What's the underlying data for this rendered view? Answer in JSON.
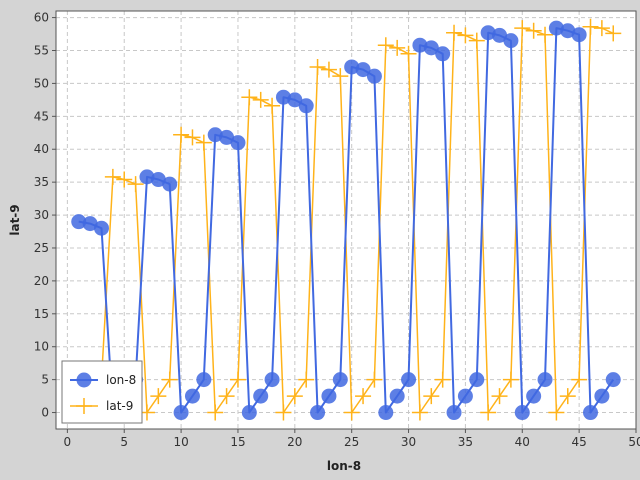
{
  "chart_data": {
    "type": "line",
    "title": "",
    "xlabel": "lon-8",
    "ylabel": "lat-9",
    "xlim": [
      -1,
      50
    ],
    "ylim": [
      -2.5,
      61
    ],
    "xticks": [
      0,
      5,
      10,
      15,
      20,
      25,
      30,
      35,
      40,
      45,
      50
    ],
    "yticks": [
      0,
      5,
      10,
      15,
      20,
      25,
      30,
      35,
      40,
      45,
      50,
      55,
      60
    ],
    "grid": true,
    "legend_position": "bottom-left",
    "series": [
      {
        "name": "lon-8",
        "color": "#4169e1",
        "marker": "circle",
        "x": [
          1,
          2,
          3,
          4,
          5,
          6,
          7,
          8,
          9,
          10,
          11,
          12,
          13,
          14,
          15,
          16,
          17,
          18,
          19,
          20,
          21,
          22,
          23,
          24,
          25,
          26,
          27,
          28,
          29,
          30,
          31,
          32,
          33,
          34,
          35,
          36,
          37,
          38,
          39,
          40,
          41,
          42,
          43,
          44,
          45,
          46,
          47,
          48
        ],
        "y": [
          29,
          28.7,
          28,
          0,
          2.5,
          5,
          35.8,
          35.4,
          34.7,
          0,
          2.5,
          5,
          42.2,
          41.8,
          41,
          0,
          2.5,
          5,
          47.9,
          47.5,
          46.6,
          0,
          2.5,
          5,
          52.5,
          52.1,
          51.1,
          0,
          2.5,
          5,
          55.8,
          55.4,
          54.5,
          0,
          2.5,
          5,
          57.7,
          57.3,
          56.5,
          0,
          2.5,
          5,
          58.4,
          58,
          57.4,
          0,
          2.5,
          5
        ]
      },
      {
        "name": "lat-9",
        "color": "#ffb31a",
        "marker": "plus",
        "x": [
          1,
          2,
          3,
          4,
          5,
          6,
          7,
          8,
          9,
          10,
          11,
          12,
          13,
          14,
          15,
          16,
          17,
          18,
          19,
          20,
          21,
          22,
          23,
          24,
          25,
          26,
          27,
          28,
          29,
          30,
          31,
          32,
          33,
          34,
          35,
          36,
          37,
          38,
          39,
          40,
          41,
          42,
          43,
          44,
          45,
          46,
          47,
          48
        ],
        "y": [
          0,
          2.5,
          5,
          35.8,
          35.4,
          34.7,
          0,
          2.5,
          5,
          42.2,
          41.8,
          41,
          0,
          2.5,
          5,
          47.9,
          47.5,
          46.6,
          0,
          2.5,
          5,
          52.5,
          52.1,
          51.1,
          0,
          2.5,
          5,
          55.8,
          55.4,
          54.5,
          0,
          2.5,
          5,
          57.7,
          57.3,
          56.5,
          0,
          2.5,
          5,
          58.4,
          58,
          57.4,
          0,
          2.5,
          5,
          58.6,
          58.4,
          57.6
        ]
      }
    ]
  }
}
